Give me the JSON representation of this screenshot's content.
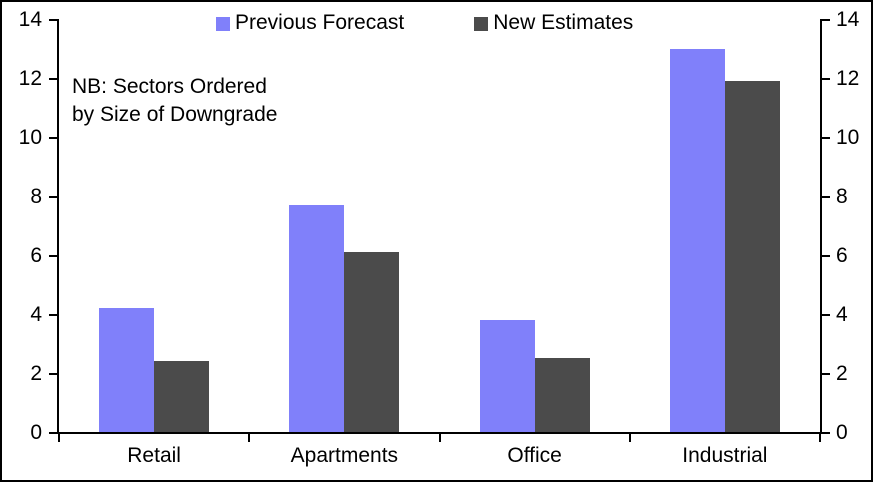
{
  "chart_data": {
    "type": "bar",
    "title": "",
    "xlabel": "",
    "ylabel": "",
    "categories": [
      "Retail",
      "Apartments",
      "Office",
      "Industrial"
    ],
    "series": [
      {
        "name": "Previous Forecast",
        "color": "#8080fa",
        "values": [
          4.2,
          7.7,
          3.8,
          13.0
        ]
      },
      {
        "name": "New Estimates",
        "color": "#4b4b4b",
        "values": [
          2.4,
          6.1,
          2.5,
          11.9
        ]
      }
    ],
    "ylim": [
      0,
      14
    ],
    "yticks": [
      0,
      2,
      4,
      6,
      8,
      10,
      12,
      14
    ],
    "dual_y_axis": true,
    "grid": false,
    "legend_position": "top"
  },
  "annotation": {
    "lines": [
      "NB: Sectors Ordered",
      "by Size of Downgrade"
    ]
  }
}
